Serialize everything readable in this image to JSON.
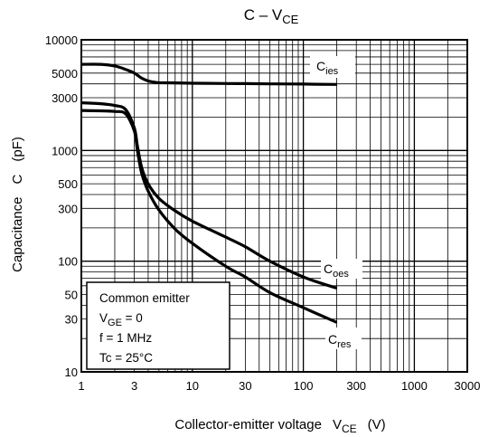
{
  "chart_data": {
    "type": "line",
    "title": "C – VCE",
    "title_parts": {
      "main": "C – V",
      "sub": "CE"
    },
    "xlabel": "Collector-emitter voltage VCE (V)",
    "xlabel_parts": {
      "main": "Collector-emitter voltage",
      "var": "V",
      "sub": "CE",
      "unit": "(V)"
    },
    "ylabel": "Capacitance C (pF)",
    "ylabel_parts": {
      "main": "Capacitance",
      "var": "C",
      "unit": "(pF)"
    },
    "x_scale": "log",
    "y_scale": "log",
    "xlim": [
      1,
      3000
    ],
    "ylim": [
      10,
      10000
    ],
    "grid": true,
    "x_tick_labels": [
      "1",
      "3",
      "10",
      "30",
      "100",
      "300",
      "1000",
      "3000"
    ],
    "x_tick_values": [
      1,
      3,
      10,
      30,
      100,
      300,
      1000,
      3000
    ],
    "y_tick_labels": [
      "10",
      "30",
      "50",
      "100",
      "300",
      "500",
      "1000",
      "3000",
      "5000",
      "10000"
    ],
    "y_tick_values": [
      10,
      30,
      50,
      100,
      300,
      500,
      1000,
      3000,
      5000,
      10000
    ],
    "series": [
      {
        "name": "Cies",
        "label_main": "C",
        "label_sub": "ies",
        "color": "#000000",
        "x": [
          1,
          1.5,
          2,
          2.5,
          3,
          3.5,
          4,
          4.5,
          5,
          7,
          10,
          20,
          30,
          50,
          100,
          200
        ],
        "values": [
          6000,
          6000,
          5800,
          5400,
          5000,
          4500,
          4250,
          4150,
          4100,
          4080,
          4050,
          4030,
          4020,
          4000,
          3980,
          3950
        ]
      },
      {
        "name": "Coes",
        "label_main": "C",
        "label_sub": "oes",
        "color": "#000000",
        "x": [
          1,
          1.5,
          2,
          2.5,
          3,
          3.2,
          3.5,
          4,
          5,
          7,
          10,
          20,
          30,
          50,
          100,
          200
        ],
        "values": [
          2700,
          2650,
          2550,
          2350,
          1600,
          1100,
          700,
          500,
          370,
          285,
          230,
          165,
          135,
          100,
          72,
          57
        ]
      },
      {
        "name": "Cres",
        "label_main": "C",
        "label_sub": "res",
        "color": "#000000",
        "x": [
          1,
          1.5,
          2,
          2.5,
          3,
          3.2,
          3.5,
          4,
          5,
          7,
          10,
          20,
          30,
          50,
          100,
          200
        ],
        "values": [
          2300,
          2280,
          2250,
          2150,
          1500,
          1000,
          620,
          430,
          290,
          195,
          145,
          90,
          72,
          52,
          38,
          28
        ]
      }
    ],
    "annotation": {
      "lines": [
        {
          "text": "Common emitter"
        },
        {
          "main": "V",
          "sub": "GE",
          "rest": " = 0"
        },
        {
          "text": "f = 1 MHz"
        },
        {
          "text": "Tc = 25°C"
        }
      ]
    }
  }
}
